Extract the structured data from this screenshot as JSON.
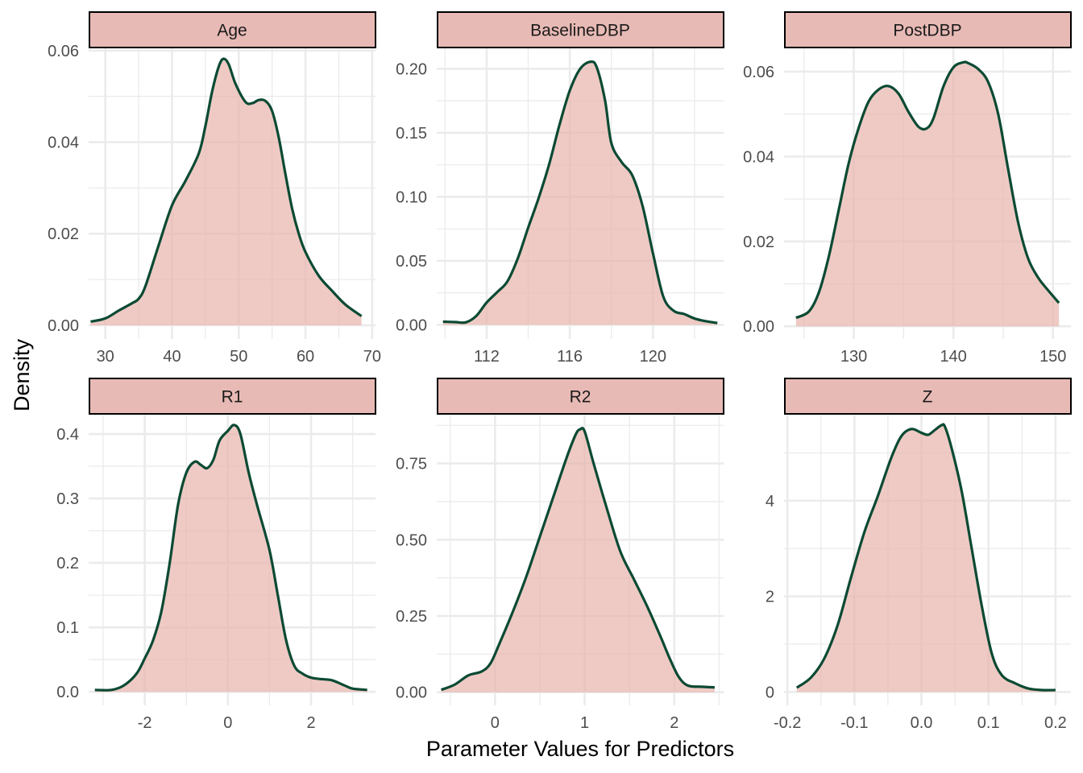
{
  "chart_data": {
    "type": "area",
    "subtype": "faceted-density",
    "xlabel": "Parameter Values for Predictors",
    "ylabel": "Density",
    "grid": true,
    "colors": {
      "fill": "#e8b3ad",
      "fill_opacity": 0.7,
      "line": "#0b4a33",
      "strip_fill": "#e8bab5",
      "strip_border": "#000000",
      "grid": "#ebebeb"
    },
    "panels": [
      {
        "name": "Age",
        "xlim": [
          27.5,
          70.5
        ],
        "ylim": [
          -0.003,
          0.0605
        ],
        "xticks": [
          30,
          40,
          50,
          60,
          70
        ],
        "xtick_labels": [
          "30",
          "40",
          "50",
          "60",
          "70"
        ],
        "yticks": [
          0,
          0.02,
          0.04,
          0.06
        ],
        "ytick_labels": [
          "0.00",
          "0.02",
          "0.04",
          "0.06"
        ],
        "x": [
          27.8,
          30,
          32,
          34,
          35,
          36,
          38,
          40,
          42,
          44,
          45,
          46,
          47,
          47.7,
          48.5,
          49.5,
          51,
          52,
          53,
          54,
          55,
          56,
          57,
          58,
          59,
          60,
          62,
          64,
          66,
          68.4
        ],
        "y": [
          0.0008,
          0.0015,
          0.0032,
          0.0048,
          0.0058,
          0.0085,
          0.0175,
          0.0262,
          0.0315,
          0.0375,
          0.0435,
          0.051,
          0.0565,
          0.0582,
          0.057,
          0.0528,
          0.0488,
          0.0485,
          0.0492,
          0.049,
          0.0468,
          0.041,
          0.033,
          0.0255,
          0.02,
          0.016,
          0.0108,
          0.0075,
          0.0045,
          0.002
        ]
      },
      {
        "name": "BaselineDBP",
        "xlim": [
          109.6,
          123.4
        ],
        "ylim": [
          -0.011,
          0.216
        ],
        "xticks": [
          112,
          116,
          120
        ],
        "xtick_labels": [
          "112",
          "116",
          "120"
        ],
        "yticks": [
          0,
          0.05,
          0.1,
          0.15,
          0.2
        ],
        "ytick_labels": [
          "0.00",
          "0.05",
          "0.10",
          "0.15",
          "0.20"
        ],
        "x": [
          109.9,
          110.5,
          111,
          111.5,
          112,
          112.5,
          113,
          113.5,
          114,
          114.5,
          115,
          115.5,
          116,
          116.5,
          117,
          117.3,
          117.7,
          118,
          118.5,
          119,
          119.5,
          120,
          120.5,
          121,
          121.5,
          122,
          122.5,
          123.1
        ],
        "y": [
          0.0025,
          0.0022,
          0.002,
          0.007,
          0.0175,
          0.0255,
          0.034,
          0.052,
          0.076,
          0.099,
          0.125,
          0.156,
          0.183,
          0.2,
          0.2055,
          0.201,
          0.175,
          0.142,
          0.127,
          0.117,
          0.093,
          0.056,
          0.022,
          0.011,
          0.0085,
          0.005,
          0.003,
          0.0015
        ]
      },
      {
        "name": "PostDBP",
        "xlim": [
          123.0,
          151.8
        ],
        "ylim": [
          -0.003,
          0.0655
        ],
        "xticks": [
          130,
          140,
          150
        ],
        "xtick_labels": [
          "130",
          "140",
          "150"
        ],
        "yticks": [
          0,
          0.02,
          0.04,
          0.06
        ],
        "ytick_labels": [
          "0.00",
          "0.02",
          "0.04",
          "0.06"
        ],
        "x": [
          124.2,
          125.5,
          126.5,
          127.5,
          128.5,
          129.5,
          130.5,
          131.5,
          132.5,
          133.5,
          134.5,
          135.5,
          136.5,
          137.3,
          138,
          139,
          140,
          141,
          141.5,
          142.5,
          143.5,
          144.5,
          145.5,
          146.5,
          147.5,
          148.5,
          149.5,
          150.6
        ],
        "y": [
          0.002,
          0.0035,
          0.008,
          0.0165,
          0.0275,
          0.0385,
          0.0468,
          0.053,
          0.0558,
          0.0566,
          0.0548,
          0.0505,
          0.047,
          0.0466,
          0.049,
          0.0565,
          0.061,
          0.0622,
          0.062,
          0.0606,
          0.0575,
          0.05,
          0.037,
          0.0245,
          0.016,
          0.0115,
          0.0085,
          0.0055
        ]
      },
      {
        "name": "R1",
        "xlim": [
          -3.35,
          3.55
        ],
        "ylim": [
          -0.021,
          0.43
        ],
        "xticks": [
          -2,
          0,
          2
        ],
        "xtick_labels": [
          "-2",
          "0",
          "2"
        ],
        "yticks": [
          0,
          0.1,
          0.2,
          0.3,
          0.4
        ],
        "ytick_labels": [
          "0.0",
          "0.1",
          "0.2",
          "0.3",
          "0.4"
        ],
        "x": [
          -3.2,
          -2.8,
          -2.5,
          -2.2,
          -2.0,
          -1.8,
          -1.6,
          -1.4,
          -1.2,
          -1.0,
          -0.8,
          -0.65,
          -0.5,
          -0.35,
          -0.2,
          0.0,
          0.15,
          0.3,
          0.5,
          0.7,
          1.0,
          1.2,
          1.4,
          1.6,
          1.8,
          2.0,
          2.2,
          2.5,
          2.8,
          3.0,
          3.35
        ],
        "y": [
          0.003,
          0.003,
          0.01,
          0.028,
          0.052,
          0.08,
          0.125,
          0.2,
          0.29,
          0.34,
          0.357,
          0.352,
          0.347,
          0.36,
          0.39,
          0.405,
          0.414,
          0.4,
          0.34,
          0.29,
          0.22,
          0.15,
          0.08,
          0.04,
          0.028,
          0.022,
          0.02,
          0.018,
          0.01,
          0.005,
          0.003
        ]
      },
      {
        "name": "R2",
        "xlim": [
          -0.65,
          2.55
        ],
        "ylim": [
          -0.043,
          0.91
        ],
        "xticks": [
          0,
          1,
          2
        ],
        "xtick_labels": [
          "0",
          "1",
          "2"
        ],
        "yticks": [
          0,
          0.25,
          0.5,
          0.75
        ],
        "ytick_labels": [
          "0.00",
          "0.25",
          "0.50",
          "0.75"
        ],
        "x": [
          -0.6,
          -0.45,
          -0.3,
          -0.15,
          -0.05,
          0.05,
          0.2,
          0.35,
          0.5,
          0.65,
          0.8,
          0.9,
          0.95,
          1.0,
          1.1,
          1.25,
          1.4,
          1.55,
          1.7,
          1.85,
          1.95,
          2.05,
          2.15,
          2.3,
          2.45
        ],
        "y": [
          0.008,
          0.025,
          0.055,
          0.068,
          0.095,
          0.16,
          0.265,
          0.38,
          0.51,
          0.64,
          0.77,
          0.845,
          0.862,
          0.855,
          0.75,
          0.6,
          0.46,
          0.37,
          0.28,
          0.18,
          0.11,
          0.05,
          0.022,
          0.018,
          0.016
        ]
      },
      {
        "name": "Z",
        "xlim": [
          -0.205,
          0.223
        ],
        "ylim": [
          -0.28,
          5.8
        ],
        "xticks": [
          -0.2,
          -0.1,
          0.0,
          0.1,
          0.2
        ],
        "xtick_labels": [
          "-0.2",
          "-0.1",
          "0.0",
          "0.1",
          "0.2"
        ],
        "yticks": [
          0,
          2,
          4
        ],
        "ytick_labels": [
          "0",
          "2",
          "4"
        ],
        "x": [
          -0.186,
          -0.165,
          -0.145,
          -0.125,
          -0.105,
          -0.085,
          -0.065,
          -0.045,
          -0.03,
          -0.015,
          0.0,
          0.01,
          0.02,
          0.03,
          0.035,
          0.045,
          0.06,
          0.075,
          0.09,
          0.105,
          0.12,
          0.14,
          0.16,
          0.18,
          0.2
        ],
        "y": [
          0.09,
          0.3,
          0.7,
          1.4,
          2.4,
          3.35,
          4.1,
          4.9,
          5.35,
          5.5,
          5.42,
          5.38,
          5.48,
          5.58,
          5.55,
          5.1,
          4.2,
          3.0,
          1.8,
          0.8,
          0.35,
          0.18,
          0.07,
          0.04,
          0.04
        ]
      }
    ]
  }
}
